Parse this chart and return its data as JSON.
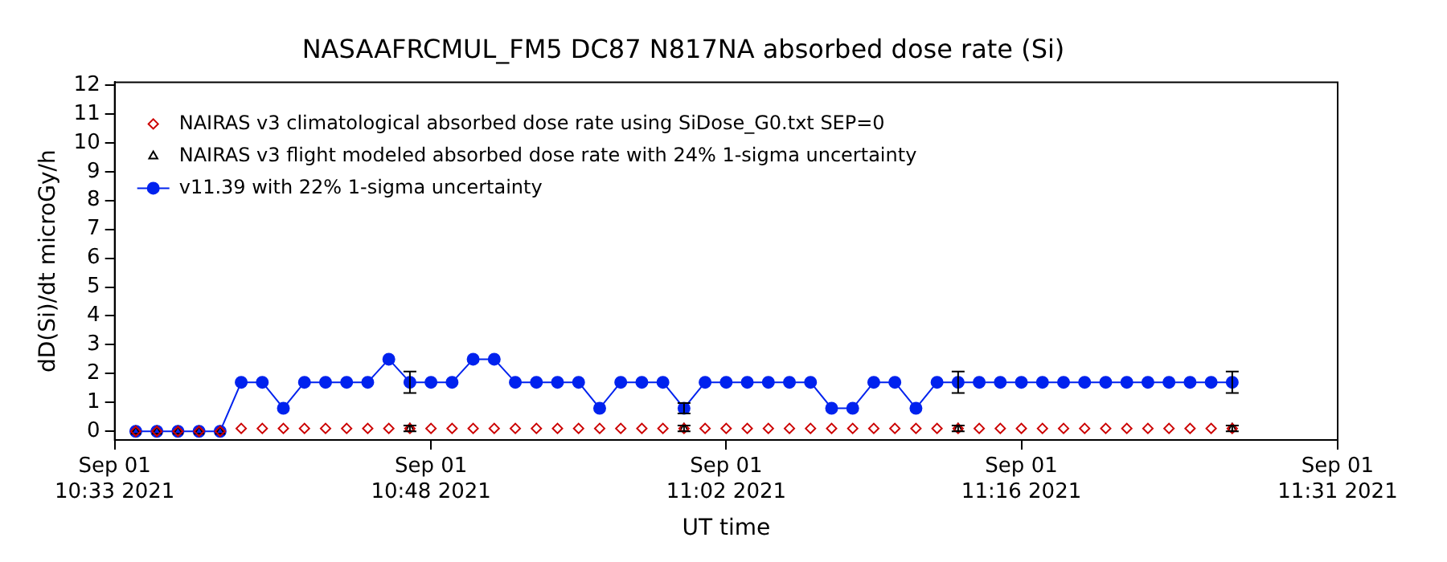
{
  "chart_data": {
    "type": "line",
    "title": "NASAAFRCMUL_FM5 DC87 N817NA absorbed dose rate (Si)",
    "xlabel": "UT time",
    "ylabel": "dD(Si)/dt microGy/h",
    "x": [
      "2021-09-01T10:34",
      "2021-09-01T10:35",
      "2021-09-01T10:36",
      "2021-09-01T10:37",
      "2021-09-01T10:38",
      "2021-09-01T10:39",
      "2021-09-01T10:40",
      "2021-09-01T10:41",
      "2021-09-01T10:42",
      "2021-09-01T10:43",
      "2021-09-01T10:44",
      "2021-09-01T10:45",
      "2021-09-01T10:46",
      "2021-09-01T10:47",
      "2021-09-01T10:48",
      "2021-09-01T10:49",
      "2021-09-01T10:50",
      "2021-09-01T10:51",
      "2021-09-01T10:52",
      "2021-09-01T10:53",
      "2021-09-01T10:54",
      "2021-09-01T10:55",
      "2021-09-01T10:56",
      "2021-09-01T10:57",
      "2021-09-01T10:58",
      "2021-09-01T10:59",
      "2021-09-01T11:00",
      "2021-09-01T11:01",
      "2021-09-01T11:02",
      "2021-09-01T11:03",
      "2021-09-01T11:04",
      "2021-09-01T11:05",
      "2021-09-01T11:06",
      "2021-09-01T11:07",
      "2021-09-01T11:08",
      "2021-09-01T11:09",
      "2021-09-01T11:10",
      "2021-09-01T11:11",
      "2021-09-01T11:12",
      "2021-09-01T11:13",
      "2021-09-01T11:14",
      "2021-09-01T11:15",
      "2021-09-01T11:16",
      "2021-09-01T11:17",
      "2021-09-01T11:18",
      "2021-09-01T11:19",
      "2021-09-01T11:20",
      "2021-09-01T11:21",
      "2021-09-01T11:22",
      "2021-09-01T11:23",
      "2021-09-01T11:24",
      "2021-09-01T11:25",
      "2021-09-01T11:26"
    ],
    "series": [
      {
        "name": "NAIRAS v3 climatological absorbed dose rate using SiDose_G0.txt SEP=0",
        "type": "scatter",
        "marker": "diamond",
        "color": "#cc0000",
        "values": [
          0,
          0,
          0,
          0,
          0,
          0.1,
          0.1,
          0.1,
          0.1,
          0.1,
          0.1,
          0.1,
          0.1,
          0.1,
          0.1,
          0.1,
          0.1,
          0.1,
          0.1,
          0.1,
          0.1,
          0.1,
          0.1,
          0.1,
          0.1,
          0.1,
          0.1,
          0.1,
          0.1,
          0.1,
          0.1,
          0.1,
          0.1,
          0.1,
          0.1,
          0.1,
          0.1,
          0.1,
          0.1,
          0.1,
          0.1,
          0.1,
          0.1,
          0.1,
          0.1,
          0.1,
          0.1,
          0.1,
          0.1,
          0.1,
          0.1,
          0.1,
          0.1
        ]
      },
      {
        "name": "NAIRAS v3 flight modeled absorbed dose rate with 24% 1-sigma uncertainty",
        "type": "scatter",
        "marker": "triangle",
        "color": "#000000",
        "x": [
          "2021-09-01T10:34",
          "2021-09-01T10:35",
          "2021-09-01T10:36",
          "2021-09-01T10:37",
          "2021-09-01T10:38",
          "2021-09-01T10:47",
          "2021-09-01T11:00",
          "2021-09-01T11:13",
          "2021-09-01T11:26"
        ],
        "values": [
          0,
          0,
          0,
          0,
          0,
          0.1,
          0.1,
          0.1,
          0.1
        ],
        "errors": [
          null,
          null,
          null,
          null,
          null,
          0.1,
          0.1,
          0.1,
          0.1
        ]
      },
      {
        "name": "v11.39 with 22% 1-sigma uncertainty",
        "marker": "circle",
        "line_style": "solid",
        "color": "#0022ee",
        "values": [
          0,
          0,
          0,
          0,
          0,
          1.7,
          1.7,
          0.8,
          1.7,
          1.7,
          1.7,
          1.7,
          2.5,
          1.7,
          1.7,
          1.7,
          2.5,
          2.5,
          1.7,
          1.7,
          1.7,
          1.7,
          0.8,
          1.7,
          1.7,
          1.7,
          0.8,
          1.7,
          1.7,
          1.7,
          1.7,
          1.7,
          1.7,
          0.8,
          0.8,
          1.7,
          1.7,
          0.8,
          1.7,
          1.7,
          1.7,
          1.7,
          1.7,
          1.7,
          1.7,
          1.7,
          1.7,
          1.7,
          1.7,
          1.7,
          1.7,
          1.7,
          1.7
        ],
        "errors": [
          null,
          null,
          null,
          null,
          null,
          null,
          null,
          null,
          null,
          null,
          null,
          null,
          null,
          0.37,
          null,
          null,
          null,
          null,
          null,
          null,
          null,
          null,
          null,
          null,
          null,
          null,
          0.18,
          null,
          null,
          null,
          null,
          null,
          null,
          null,
          null,
          null,
          null,
          null,
          null,
          0.37,
          null,
          null,
          null,
          null,
          null,
          null,
          null,
          null,
          null,
          null,
          null,
          null,
          0.37
        ]
      }
    ],
    "xlim": [
      "2021-09-01T10:33",
      "2021-09-01T11:31"
    ],
    "xticks": [
      {
        "value": "2021-09-01T10:33",
        "label": "Sep 01\n10:33 2021"
      },
      {
        "value": "2021-09-01T10:48",
        "label": "Sep 01\n10:48 2021"
      },
      {
        "value": "2021-09-01T11:02",
        "label": "Sep 01\n11:02 2021"
      },
      {
        "value": "2021-09-01T11:16",
        "label": "Sep 01\n11:16 2021"
      },
      {
        "value": "2021-09-01T11:31",
        "label": "Sep 01\n11:31 2021"
      }
    ],
    "ylim": [
      -0.3,
      12.1
    ],
    "yticks": [
      0,
      1,
      2,
      3,
      4,
      5,
      6,
      7,
      8,
      9,
      10,
      11,
      12
    ],
    "grid": false,
    "legend": "top left"
  }
}
